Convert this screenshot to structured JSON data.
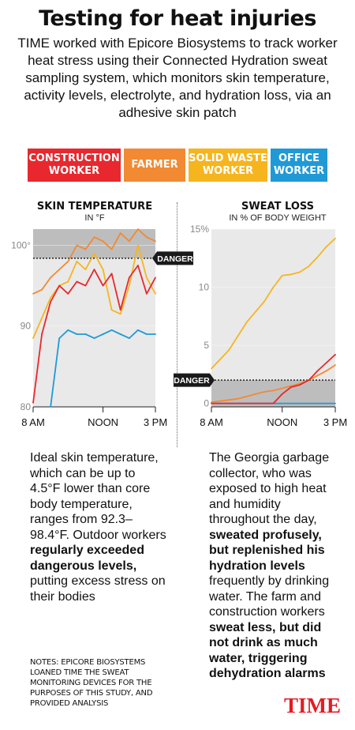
{
  "title": "Testing for heat injuries",
  "intro": "TIME worked with Epicore Biosystems to track worker heat stress using their Connected Hydration sweat sampling system, which monitors skin temperature, activity levels, electrolyte, and hydration loss, via an adhesive skin patch",
  "legend": [
    {
      "line1": "CONSTRUCTION",
      "line2": "WORKER",
      "color": "#e8282e"
    },
    {
      "line1": "FARMER",
      "line2": "",
      "color": "#f18a32"
    },
    {
      "line1": "SOLID WASTE",
      "line2": "WORKER",
      "color": "#f6b51e"
    },
    {
      "line1": "OFFICE",
      "line2": "WORKER",
      "color": "#1f9ad6"
    }
  ],
  "colors": {
    "construction": "#e8282e",
    "farmer": "#f18a32",
    "waste": "#f6b51e",
    "office": "#1f9ad6",
    "danger_zone": "#bdbdbd",
    "plot_bg": "#e9e9e9"
  },
  "chart_data": [
    {
      "type": "line",
      "title": "SKIN TEMPERATURE",
      "subtitle": "IN °F",
      "x_ticks": [
        "8 AM",
        "NOON",
        "3 PM"
      ],
      "y_ticks": [
        "80",
        "90",
        "100°"
      ],
      "ylim": [
        80,
        102
      ],
      "danger_threshold": 98.4,
      "danger_label": "DANGER",
      "x": [
        8.0,
        8.5,
        9.0,
        9.5,
        10.0,
        10.5,
        11.0,
        11.5,
        12.0,
        12.5,
        13.0,
        13.5,
        14.0,
        14.5,
        15.0
      ],
      "series": [
        {
          "key": "construction",
          "values": [
            80.5,
            89.0,
            93.0,
            95.0,
            94.0,
            95.5,
            95.0,
            97.0,
            95.0,
            96.5,
            92.0,
            96.0,
            97.5,
            94.0,
            96.0
          ]
        },
        {
          "key": "farmer",
          "values": [
            94.0,
            94.5,
            96.0,
            97.0,
            98.0,
            100.0,
            99.5,
            101.0,
            100.5,
            99.5,
            101.5,
            100.5,
            102.0,
            101.0,
            100.5
          ]
        },
        {
          "key": "waste",
          "values": [
            88.5,
            91.0,
            93.5,
            95.0,
            95.5,
            98.0,
            97.0,
            99.0,
            97.0,
            92.0,
            91.5,
            95.0,
            100.0,
            96.0,
            94.0
          ]
        },
        {
          "key": "office",
          "values": [
            null,
            null,
            80.0,
            88.5,
            89.5,
            89.0,
            89.0,
            88.5,
            89.0,
            89.5,
            89.0,
            88.5,
            89.5,
            89.0,
            89.0
          ]
        }
      ]
    },
    {
      "type": "line",
      "title": "SWEAT LOSS",
      "subtitle": "IN % OF BODY WEIGHT",
      "x_ticks": [
        "8 AM",
        "NOON",
        "3 PM"
      ],
      "y_ticks": [
        "0",
        "5",
        "10",
        "15%"
      ],
      "ylim": [
        -0.3,
        15
      ],
      "danger_threshold": 2,
      "danger_label": "DANGER",
      "x": [
        8.0,
        8.5,
        9.0,
        9.5,
        10.0,
        10.5,
        11.0,
        11.5,
        12.0,
        12.5,
        13.0,
        13.5,
        14.0,
        14.5,
        15.0
      ],
      "series": [
        {
          "key": "construction",
          "values": [
            0.0,
            0.0,
            0.0,
            0.0,
            0.0,
            0.0,
            0.0,
            0.0,
            0.8,
            1.4,
            1.6,
            2.0,
            2.8,
            3.5,
            4.2
          ]
        },
        {
          "key": "farmer",
          "values": [
            0.1,
            0.2,
            0.3,
            0.4,
            0.6,
            0.8,
            1.0,
            1.1,
            1.3,
            1.5,
            1.7,
            2.0,
            2.4,
            2.8,
            3.3
          ]
        },
        {
          "key": "waste",
          "values": [
            3.0,
            3.8,
            4.6,
            5.8,
            7.0,
            7.9,
            8.8,
            10.0,
            11.0,
            11.1,
            11.3,
            11.8,
            12.6,
            13.5,
            14.2
          ]
        },
        {
          "key": "office",
          "values": [
            0.0,
            0.0,
            0.0,
            0.0,
            0.0,
            0.0,
            0.0,
            0.0,
            0.0,
            0.0,
            0.0,
            0.0,
            0.0,
            0.0,
            0.0
          ]
        }
      ]
    }
  ],
  "left_text_segments": [
    {
      "text": "Ideal skin temperature, which can be up to 4.5°F lower than core body temperature, ranges from 92.3–98.4°F. Outdoor workers ",
      "bold": false
    },
    {
      "text": "regularly exceeded dangerous levels,",
      "bold": true
    },
    {
      "text": " putting excess stress on their bodies",
      "bold": false
    }
  ],
  "right_text_segments": [
    {
      "text": "The Georgia garbage collector, who was exposed to high heat and humidity throughout the day, ",
      "bold": false
    },
    {
      "text": "sweated profusely, but replenished his hydration levels",
      "bold": true
    },
    {
      "text": " frequently by drinking water. The farm and construction workers ",
      "bold": false
    },
    {
      "text": "sweat less, but did not drink as much water, triggering dehydration alarms",
      "bold": true
    }
  ],
  "notes": "NOTES: EPICORE BIOSYSTEMS LOANED TIME THE SWEAT MONITORING DEVICES FOR THE PURPOSES OF THIS STUDY, AND PROVIDED ANALYSIS",
  "logo": "TIME"
}
